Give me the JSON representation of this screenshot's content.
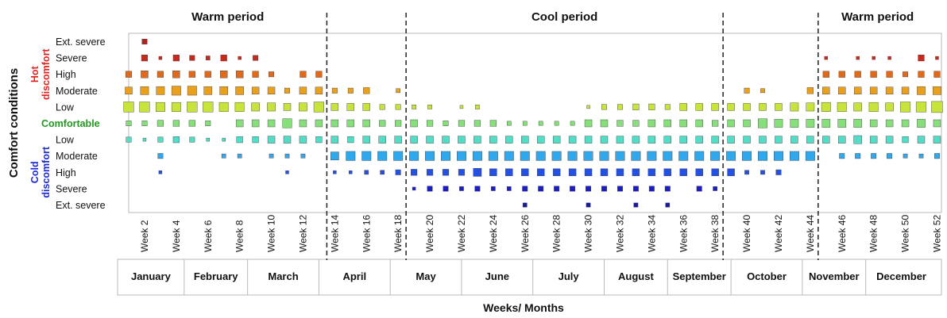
{
  "chart_data": {
    "type": "scatter",
    "subtype": "bubble-matrix",
    "ylabel": "Comfort conditions",
    "xlabel": "Weeks/ Months",
    "rows": [
      "Ext. severe",
      "Severe",
      "High",
      "Moderate",
      "Low",
      "Comfortable",
      "Low",
      "Moderate",
      "High",
      "Severe",
      "Ext. severe"
    ],
    "row_groups": [
      {
        "label": "Hot discomfort",
        "lines": [
          "Hot",
          "discomfort"
        ],
        "color": "#e8211d",
        "rows": [
          0,
          4
        ]
      },
      {
        "label": "Comfortable",
        "lines": [
          "Comfortable"
        ],
        "color": "#1f9a1f",
        "rows": [
          5,
          5
        ]
      },
      {
        "label": "Cold discomfort",
        "lines": [
          "Cold",
          "discomfort"
        ],
        "color": "#1c2ad6",
        "rows": [
          6,
          10
        ]
      }
    ],
    "row_colors": [
      "#b0231e",
      "#c62a1c",
      "#df6a1c",
      "#eaa01a",
      "#c7e43a",
      "#86e07a",
      "#53dcc6",
      "#2fa8ee",
      "#2450e4",
      "#1d1dc8",
      "#1a1a96"
    ],
    "weeks": [
      1,
      2,
      3,
      4,
      5,
      6,
      7,
      8,
      9,
      10,
      11,
      12,
      13,
      14,
      15,
      16,
      17,
      18,
      19,
      20,
      21,
      22,
      23,
      24,
      25,
      26,
      27,
      28,
      29,
      30,
      31,
      32,
      33,
      34,
      35,
      36,
      37,
      38,
      39,
      40,
      41,
      42,
      43,
      44,
      45,
      46,
      47,
      48,
      49,
      50,
      51,
      52
    ],
    "week_tick_labels": [
      "Week 2",
      "Week 4",
      "Week 6",
      "Week 8",
      "Week 10",
      "Week 12",
      "Week 14",
      "Week 16",
      "Week 18",
      "Week 20",
      "Week 22",
      "Week 24",
      "Week 26",
      "Week 28",
      "Week 30",
      "Week 32",
      "Week 34",
      "Week 36",
      "Week 38",
      "Week 40",
      "Week 42",
      "Week 44",
      "Week 46",
      "Week 48",
      "Week 50",
      "Week 52"
    ],
    "months": [
      {
        "label": "January",
        "weeks": [
          1,
          4.5
        ]
      },
      {
        "label": "February",
        "weeks": [
          4.5,
          8.5
        ]
      },
      {
        "label": "March",
        "weeks": [
          8.5,
          13
        ]
      },
      {
        "label": "April",
        "weeks": [
          13,
          17.5
        ]
      },
      {
        "label": "May",
        "weeks": [
          17.5,
          22
        ]
      },
      {
        "label": "June",
        "weeks": [
          22,
          26.5
        ]
      },
      {
        "label": "July",
        "weeks": [
          26.5,
          31
        ]
      },
      {
        "label": "August",
        "weeks": [
          31,
          35
        ]
      },
      {
        "label": "September",
        "weeks": [
          35,
          39
        ]
      },
      {
        "label": "October",
        "weeks": [
          39,
          43.5
        ]
      },
      {
        "label": "November",
        "weeks": [
          43.5,
          47.5
        ]
      },
      {
        "label": "December",
        "weeks": [
          47.5,
          52
        ]
      }
    ],
    "periods": [
      {
        "label": "Warm period",
        "weeks": [
          1,
          13.5
        ]
      },
      {
        "label": "Cool period",
        "weeks": [
          18.5,
          38.5
        ]
      },
      {
        "label": "Warm period",
        "weeks": [
          44.5,
          52
        ]
      }
    ],
    "period_dividers": [
      13.5,
      18.5,
      38.5,
      44.5
    ],
    "value_scale": "relative frequency 0-10",
    "values": [
      [
        0,
        4,
        0,
        0,
        0,
        0,
        0,
        0,
        0,
        0,
        0,
        0,
        0,
        0,
        0,
        0,
        0,
        0,
        0,
        0,
        0,
        0,
        0,
        0,
        0,
        0,
        0,
        0,
        0,
        0,
        0,
        0,
        0,
        0,
        0,
        0,
        0,
        0,
        0,
        0,
        0,
        0,
        0,
        0,
        0,
        0,
        0,
        0,
        0,
        0,
        0,
        0
      ],
      [
        0,
        5,
        2,
        5,
        4,
        3,
        5,
        2,
        4,
        0,
        0,
        0,
        0,
        0,
        0,
        0,
        0,
        0,
        0,
        0,
        0,
        0,
        0,
        0,
        0,
        0,
        0,
        0,
        0,
        0,
        0,
        0,
        0,
        0,
        0,
        0,
        0,
        0,
        0,
        0,
        0,
        0,
        0,
        0,
        2,
        0,
        2,
        2,
        2,
        0,
        5,
        2
      ],
      [
        5,
        6,
        5,
        6,
        5,
        5,
        6,
        6,
        5,
        4,
        0,
        5,
        5,
        0,
        0,
        0,
        0,
        0,
        0,
        0,
        0,
        0,
        0,
        0,
        0,
        0,
        0,
        0,
        0,
        0,
        0,
        0,
        0,
        0,
        0,
        0,
        0,
        0,
        0,
        0,
        0,
        0,
        0,
        0,
        5,
        5,
        5,
        5,
        5,
        4,
        5,
        5
      ],
      [
        6,
        7,
        7,
        8,
        8,
        7,
        7,
        7,
        6,
        6,
        4,
        6,
        6,
        4,
        4,
        5,
        0,
        3,
        0,
        0,
        0,
        0,
        0,
        0,
        0,
        0,
        0,
        0,
        0,
        0,
        0,
        0,
        0,
        0,
        0,
        0,
        0,
        0,
        0,
        4,
        3,
        0,
        0,
        5,
        6,
        6,
        6,
        6,
        6,
        6,
        7,
        7
      ],
      [
        9,
        9,
        8,
        8,
        9,
        9,
        8,
        8,
        7,
        7,
        6,
        7,
        9,
        6,
        6,
        6,
        4,
        4,
        3,
        3,
        0,
        2,
        3,
        0,
        0,
        0,
        0,
        0,
        0,
        2,
        4,
        4,
        5,
        5,
        4,
        6,
        6,
        6,
        6,
        6,
        6,
        6,
        7,
        7,
        8,
        8,
        7,
        8,
        7,
        9,
        9,
        10
      ],
      [
        4,
        4,
        5,
        5,
        5,
        4,
        0,
        6,
        6,
        6,
        8,
        6,
        6,
        6,
        6,
        6,
        5,
        5,
        6,
        5,
        4,
        5,
        5,
        5,
        3,
        3,
        3,
        3,
        3,
        6,
        6,
        5,
        5,
        6,
        6,
        6,
        6,
        5,
        6,
        6,
        8,
        7,
        7,
        7,
        7,
        7,
        7,
        6,
        6,
        6,
        7,
        6
      ],
      [
        4,
        2,
        4,
        5,
        4,
        2,
        2,
        5,
        5,
        6,
        6,
        6,
        5,
        6,
        5,
        6,
        6,
        6,
        6,
        6,
        6,
        6,
        6,
        6,
        6,
        6,
        6,
        6,
        6,
        6,
        6,
        6,
        6,
        6,
        6,
        6,
        6,
        6,
        6,
        6,
        6,
        6,
        6,
        6,
        6,
        6,
        7,
        6,
        6,
        5,
        6,
        6
      ],
      [
        0,
        0,
        4,
        0,
        0,
        0,
        3,
        3,
        0,
        3,
        3,
        3,
        0,
        7,
        8,
        8,
        8,
        8,
        8,
        8,
        8,
        8,
        8,
        8,
        8,
        8,
        8,
        8,
        8,
        8,
        8,
        8,
        8,
        8,
        8,
        8,
        8,
        8,
        8,
        8,
        8,
        8,
        8,
        8,
        0,
        4,
        4,
        4,
        4,
        3,
        3,
        4
      ],
      [
        0,
        0,
        2,
        0,
        0,
        0,
        0,
        0,
        0,
        0,
        2,
        0,
        0,
        2,
        2,
        3,
        3,
        4,
        5,
        5,
        5,
        5,
        7,
        6,
        6,
        6,
        6,
        6,
        6,
        6,
        6,
        6,
        6,
        6,
        6,
        6,
        6,
        6,
        6,
        3,
        3,
        4,
        0,
        0,
        0,
        0,
        0,
        0,
        0,
        0,
        0,
        0
      ],
      [
        0,
        0,
        0,
        0,
        0,
        0,
        0,
        0,
        0,
        0,
        0,
        0,
        0,
        0,
        0,
        0,
        0,
        0,
        2,
        4,
        4,
        3,
        4,
        3,
        3,
        4,
        4,
        4,
        4,
        4,
        4,
        4,
        4,
        4,
        4,
        0,
        4,
        3,
        0,
        0,
        0,
        0,
        0,
        0,
        0,
        0,
        0,
        0,
        0,
        0,
        0,
        0
      ],
      [
        0,
        0,
        0,
        0,
        0,
        0,
        0,
        0,
        0,
        0,
        0,
        0,
        0,
        0,
        0,
        0,
        0,
        0,
        0,
        0,
        0,
        0,
        0,
        0,
        0,
        3,
        0,
        0,
        0,
        3,
        0,
        0,
        3,
        0,
        3,
        0,
        0,
        0,
        0,
        0,
        0,
        0,
        0,
        0,
        0,
        0,
        0,
        0,
        0,
        0,
        0,
        0
      ]
    ]
  }
}
